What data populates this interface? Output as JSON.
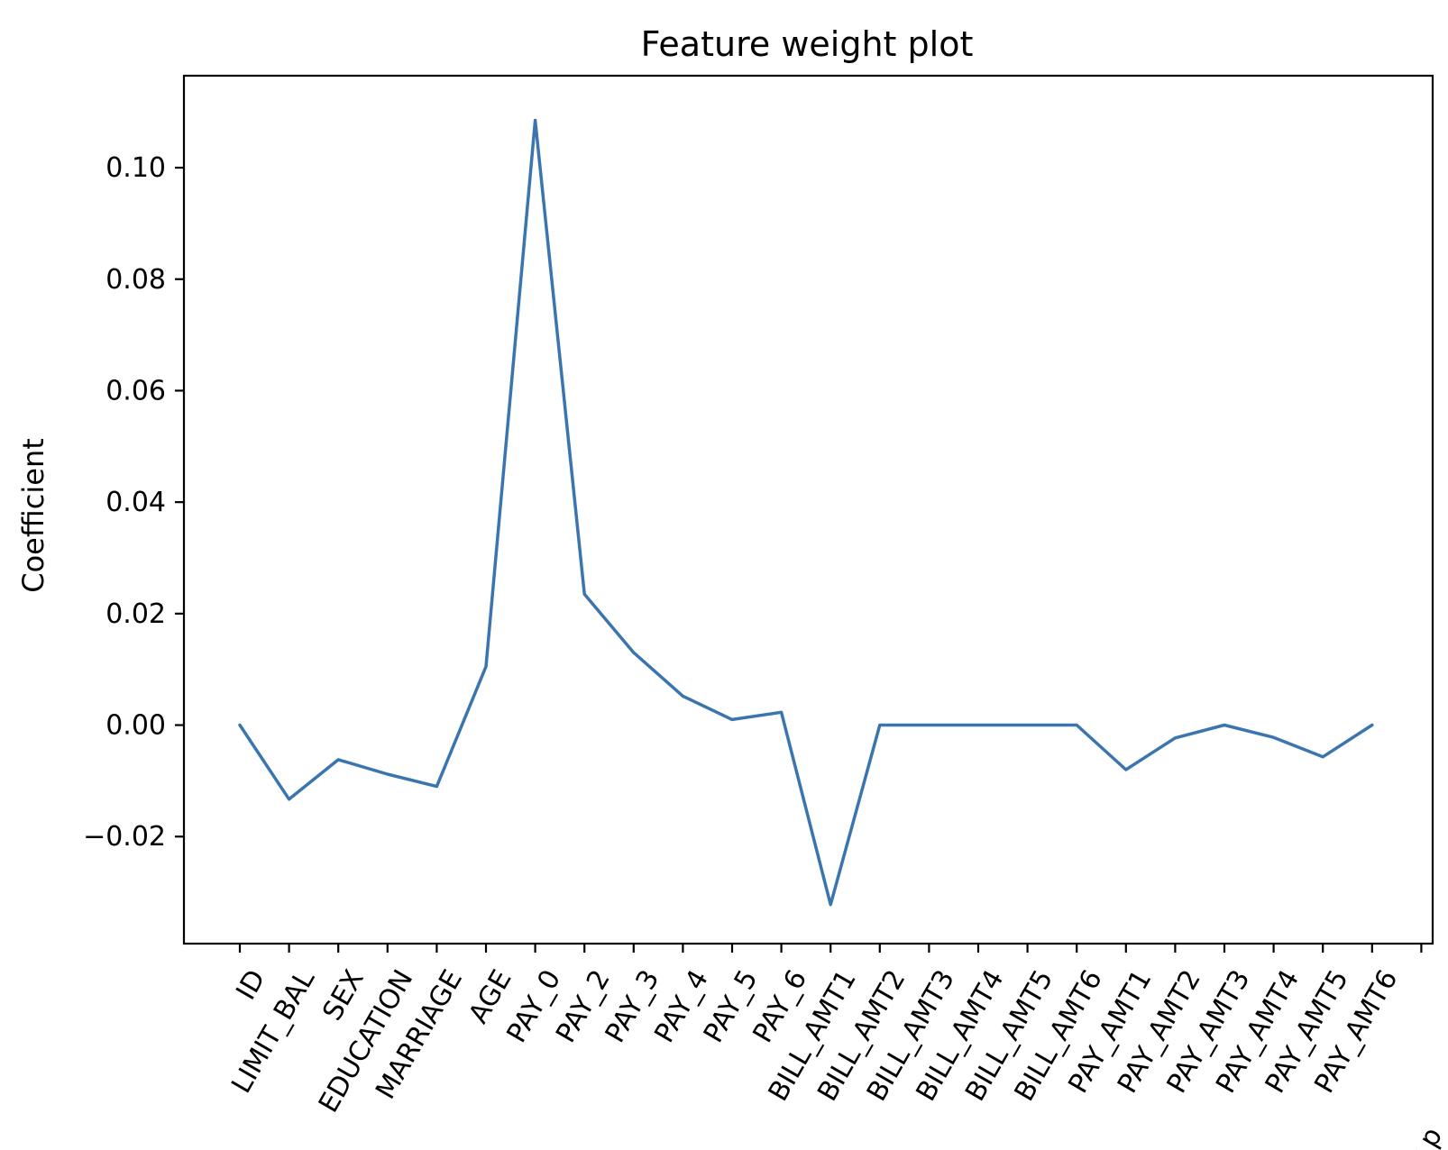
{
  "chart_data": {
    "type": "line",
    "title": "Feature weight plot",
    "ylabel": "Coefficient",
    "xlabel": "",
    "categories": [
      "ID",
      "LIMIT_BAL",
      "SEX",
      "EDUCATION",
      "MARRIAGE",
      "AGE",
      "PAY_0",
      "PAY_2",
      "PAY_3",
      "PAY_4",
      "PAY_5",
      "PAY_6",
      "BILL_AMT1",
      "BILL_AMT2",
      "BILL_AMT3",
      "BILL_AMT4",
      "BILL_AMT5",
      "BILL_AMT6",
      "PAY_AMT1",
      "PAY_AMT2",
      "PAY_AMT3",
      "PAY_AMT4",
      "PAY_AMT5",
      "PAY_AMT6"
    ],
    "values": [
      0.0,
      -0.0133,
      -0.0062,
      -0.0088,
      -0.011,
      0.0105,
      0.1085,
      0.0235,
      0.013,
      0.0052,
      0.001,
      0.0023,
      -0.0322,
      0.0,
      0.0,
      0.0,
      0.0,
      0.0,
      -0.008,
      -0.0023,
      0.0,
      -0.0022,
      -0.0057,
      0.0
    ],
    "ylim": [
      -0.0392,
      0.1165
    ],
    "yticks": [
      -0.02,
      0.0,
      0.02,
      0.04,
      0.06,
      0.08,
      0.1
    ],
    "ytick_labels": [
      "−0.02",
      "0.00",
      "0.02",
      "0.04",
      "0.06",
      "0.08",
      "0.10"
    ],
    "x_extra_tick_count": 1,
    "clipped_label_fragment": "t p",
    "line_color": "#3b75af",
    "grid": false
  }
}
